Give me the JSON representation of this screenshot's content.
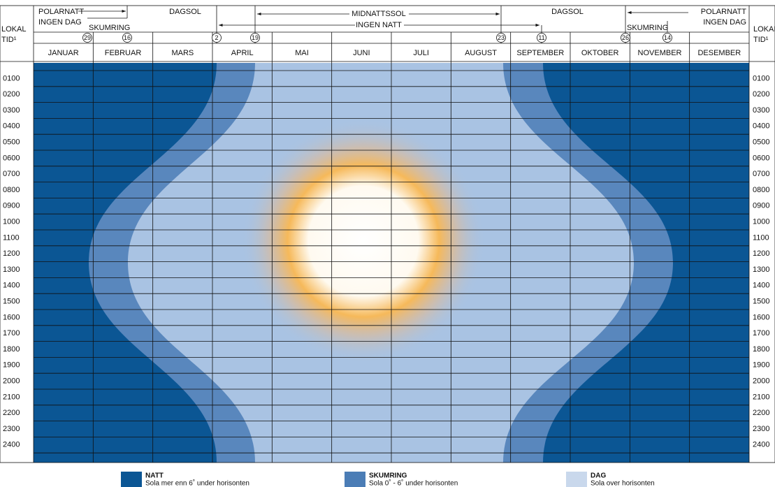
{
  "header": {
    "time_label": {
      "line1": "LOKAL",
      "line2": "TID¹"
    },
    "periods": [
      "POLARNATT",
      "INGEN DAG",
      "SKUMRING",
      "DAGSOL",
      "MIDNATTSSOL",
      "INGEN NATT",
      "DAGSOL",
      "POLARNATT",
      "INGEN DAG",
      "SKUMRING"
    ],
    "dates": [
      "29",
      "16",
      "2",
      "19",
      "23",
      "11",
      "26",
      "14"
    ]
  },
  "months": [
    "JANUAR",
    "FEBRUAR",
    "MARS",
    "APRIL",
    "MAI",
    "JUNI",
    "JULI",
    "AUGUST",
    "SEPTEMBER",
    "OKTOBER",
    "NOVEMBER",
    "DESEMBER"
  ],
  "hours": [
    "0100",
    "0200",
    "0300",
    "0400",
    "0500",
    "0600",
    "0700",
    "0800",
    "0900",
    "1000",
    "1100",
    "1200",
    "1300",
    "1400",
    "1500",
    "1600",
    "1700",
    "1800",
    "1900",
    "2000",
    "2100",
    "2200",
    "2300",
    "2400"
  ],
  "legend": [
    {
      "title": "NATT",
      "description": "Sola mer enn 6˚ under horisonten"
    },
    {
      "title": "SKUMRING",
      "description": "Sola 0˚ - 6˚ under horisonten"
    },
    {
      "title": "DAG",
      "description": "Sola over horisonten"
    }
  ]
}
